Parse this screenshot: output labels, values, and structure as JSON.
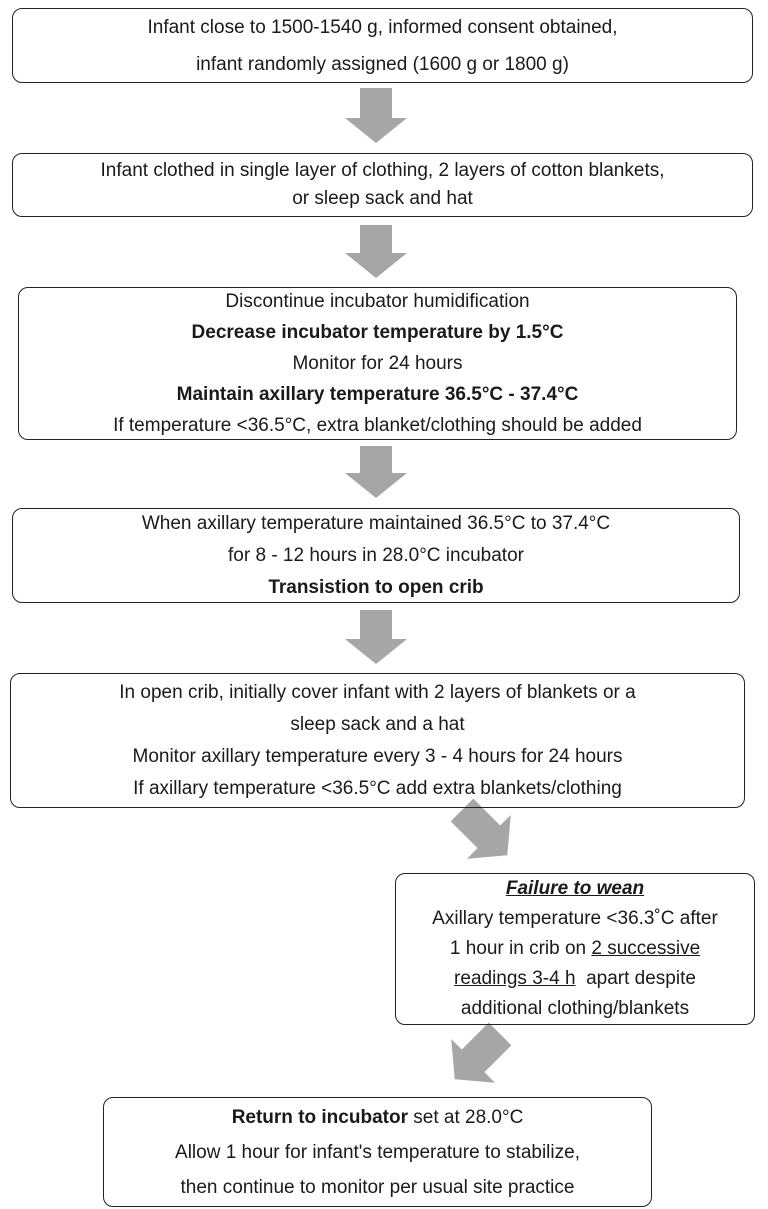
{
  "nodes": [
    {
      "lines": [
        [
          {
            "text": "Infant close to 1500-1540 g, informed consent obtained,"
          }
        ],
        [
          {
            "text": "infant randomly assigned (1600 g or 1800 g)"
          }
        ]
      ]
    },
    {
      "lines": [
        [
          {
            "text": "Infant clothed in single layer of clothing, 2 layers of cotton blankets,"
          }
        ],
        [
          {
            "text": "or sleep sack and hat"
          }
        ]
      ]
    },
    {
      "lines": [
        [
          {
            "text": "Discontinue incubator humidification"
          }
        ],
        [
          {
            "text": "Decrease incubator temperature by 1.5°C",
            "bold": true
          }
        ],
        [
          {
            "text": "Monitor for 24 hours"
          }
        ],
        [
          {
            "text": "Maintain axillary temperature 36.5°C - 37.4°C",
            "bold": true
          }
        ],
        [
          {
            "text": "If temperature <36.5°C, extra blanket/clothing should be added"
          }
        ]
      ]
    },
    {
      "lines": [
        [
          {
            "text": "When axillary temperature maintained 36.5°C to 37.4°C"
          }
        ],
        [
          {
            "text": "for 8 - 12 hours in 28.0°C incubator"
          }
        ],
        [
          {
            "text": "Transistion to open crib",
            "bold": true
          }
        ]
      ]
    },
    {
      "lines": [
        [
          {
            "text": "In open crib, initially cover infant with 2 layers of blankets or a"
          }
        ],
        [
          {
            "text": "sleep sack and a hat"
          }
        ],
        [
          {
            "text": "Monitor axillary temperature every 3 - 4 hours for 24 hours"
          }
        ],
        [
          {
            "text": "If axillary temperature <36.5°C add extra blankets/clothing"
          }
        ]
      ]
    },
    {
      "lines": [
        [
          {
            "text": "Failure to wean",
            "bold": true,
            "italic": true,
            "underline": true
          }
        ],
        [
          {
            "text": "Axillary temperature <36.3˚C after"
          }
        ],
        [
          {
            "text": "1 hour in crib on "
          },
          {
            "text": "2 successive",
            "underline": true
          }
        ],
        [
          {
            "text": "readings 3-4 h",
            "underline": true
          },
          {
            "text": "  apart despite"
          }
        ],
        [
          {
            "text": "additional clothing/blankets"
          }
        ]
      ]
    },
    {
      "lines": [
        [
          {
            "text": "Return to incubator",
            "bold": true
          },
          {
            "text": " set at 28.0°C"
          }
        ],
        [
          {
            "text": "Allow 1 hour for infant's temperature to stabilize,"
          }
        ],
        [
          {
            "text": "then continue to monitor per usual site practice"
          }
        ]
      ]
    }
  ]
}
